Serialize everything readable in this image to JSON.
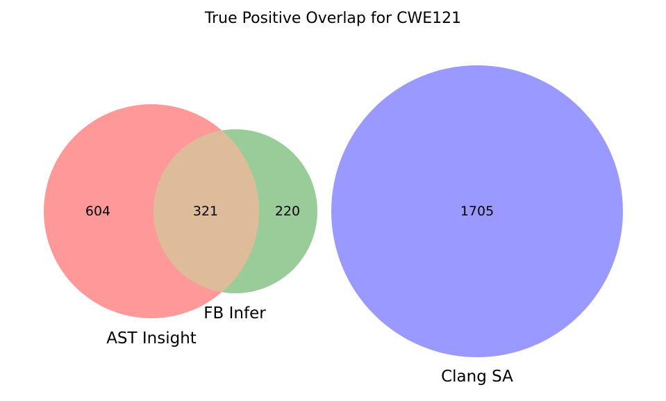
{
  "title": "True Positive Overlap for CWE121",
  "chart_data": {
    "type": "venn",
    "title": "True Positive Overlap for CWE121",
    "sets": [
      {
        "name": "AST Insight",
        "color": "#ff9999"
      },
      {
        "name": "FB Infer",
        "color": "#99cc99"
      },
      {
        "name": "Clang SA",
        "color": "#9999ff"
      }
    ],
    "regions": [
      {
        "sets": [
          "AST Insight"
        ],
        "value": 604
      },
      {
        "sets": [
          "AST Insight",
          "FB Infer"
        ],
        "value": 321
      },
      {
        "sets": [
          "FB Infer"
        ],
        "value": 220
      },
      {
        "sets": [
          "Clang SA"
        ],
        "value": 1705
      }
    ],
    "overlap_color": "#dfbc99"
  }
}
